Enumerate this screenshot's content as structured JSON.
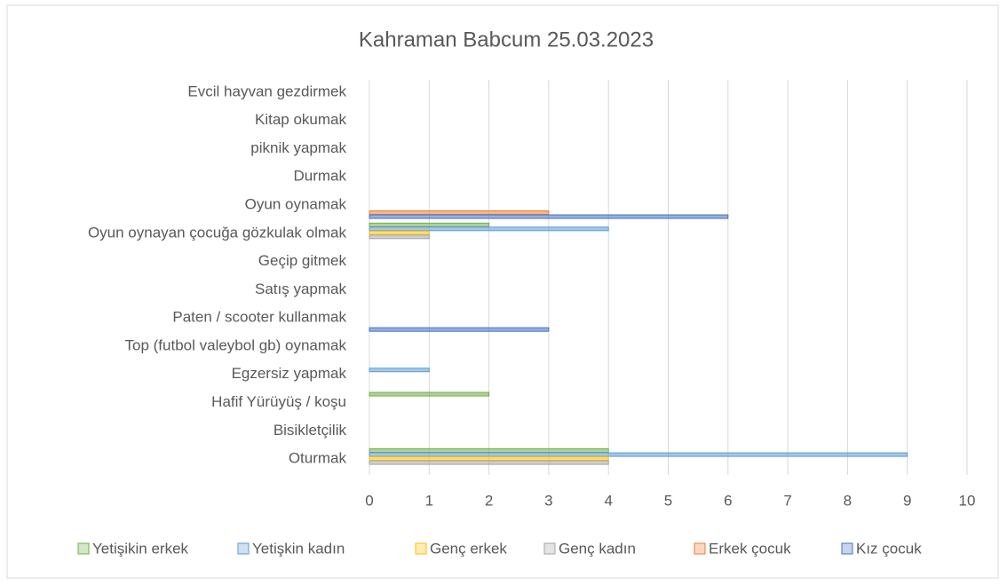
{
  "chart_data": {
    "type": "bar",
    "orientation": "horizontal",
    "title": "Kahraman Babcum 25.03.2023",
    "categories": [
      "Oturmak",
      "Bisikletçilik",
      "Hafif Yürüyüş / koşu",
      "Egzersiz yapmak",
      "Top (futbol valeybol  gb) oynamak",
      "Paten / scooter kullanmak",
      "Satış yapmak",
      "Geçip gitmek",
      "Oyun oynayan çocuğa gözkulak olmak",
      "Oyun oynamak",
      "Durmak",
      "piknik yapmak",
      "Kitap okumak",
      "Evcil hayvan gezdirmek"
    ],
    "series": [
      {
        "name": "Yetişikin erkek",
        "color": "#70ad47",
        "values": [
          4,
          0,
          2,
          0,
          0,
          0,
          0,
          0,
          2,
          0,
          0,
          0,
          0,
          0
        ]
      },
      {
        "name": "Yetişkin kadın",
        "color": "#5b9bd5",
        "values": [
          9,
          0,
          0,
          1,
          0,
          0,
          0,
          0,
          4,
          0,
          0,
          0,
          0,
          0
        ]
      },
      {
        "name": "Genç erkek",
        "color": "#ffc000",
        "values": [
          4,
          0,
          0,
          0,
          0,
          0,
          0,
          0,
          1,
          0,
          0,
          0,
          0,
          0
        ]
      },
      {
        "name": "Genç kadın",
        "color": "#a5a5a5",
        "values": [
          4,
          0,
          0,
          0,
          0,
          0,
          0,
          0,
          1,
          0,
          0,
          0,
          0,
          0
        ]
      },
      {
        "name": "Erkek çocuk",
        "color": "#ed7d31",
        "values": [
          0,
          0,
          0,
          0,
          0,
          0,
          0,
          0,
          0,
          3,
          0,
          0,
          0,
          0
        ]
      },
      {
        "name": "Kız çocuk",
        "color": "#4472c4",
        "values": [
          0,
          0,
          0,
          0,
          0,
          3,
          0,
          0,
          0,
          6,
          0,
          0,
          0,
          0
        ]
      }
    ],
    "xlim": [
      0,
      10
    ],
    "xticks": [
      0,
      1,
      2,
      3,
      4,
      5,
      6,
      7,
      8,
      9,
      10
    ],
    "grid": true,
    "legend": "bottom"
  }
}
